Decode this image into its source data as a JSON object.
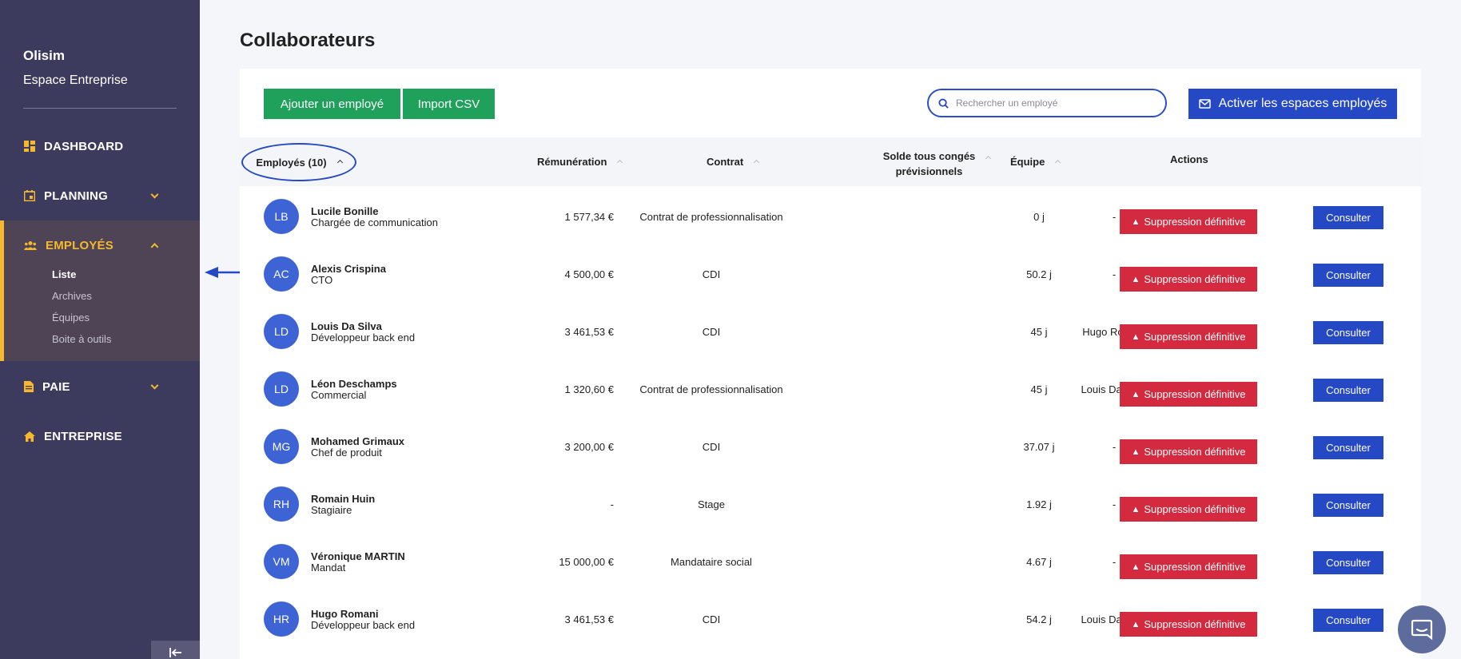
{
  "sidebar": {
    "company": "Olisim",
    "space": "Espace Entreprise",
    "accent_color": "#f5b82e",
    "items": [
      {
        "label": "DASHBOARD",
        "icon": "dashboard-icon"
      },
      {
        "label": "PLANNING",
        "icon": "calendar-icon"
      },
      {
        "label": "EMPLOYÉS",
        "icon": "people-icon"
      },
      {
        "label": "PAIE",
        "icon": "document-icon"
      },
      {
        "label": "ENTREPRISE",
        "icon": "home-icon"
      }
    ],
    "subitems": [
      "Liste",
      "Archives",
      "Équipes",
      "Boite à outils"
    ],
    "collapse_icon": "collapse-left-icon"
  },
  "page": {
    "title": "Collaborateurs"
  },
  "toolbar": {
    "add_label": "Ajouter un employé",
    "import_label": "Import CSV",
    "search_placeholder": "Rechercher un employé",
    "activate_label": "Activer les espaces employés"
  },
  "table": {
    "headers": {
      "employees": "Employés (10)",
      "pay": "Rémunération",
      "contract": "Contrat",
      "balance_line1": "Solde tous congés",
      "balance_line2": "prévisionnels",
      "team": "Équipe",
      "actions": "Actions"
    },
    "delete_label": "Suppression définitive",
    "see_label": "Consulter",
    "rows": [
      {
        "initials": "LB",
        "name": "Lucile Bonille",
        "role": "Chargée de communication",
        "pay": "1 577,34 €",
        "contract": "Contrat de professionnalisation",
        "balance": "0 j",
        "team": "-"
      },
      {
        "initials": "AC",
        "name": "Alexis Crispina",
        "role": "CTO",
        "pay": "4 500,00 €",
        "contract": "CDI",
        "balance": "50.2 j",
        "team": "-"
      },
      {
        "initials": "LD",
        "name": "Louis Da Silva",
        "role": "Développeur back end",
        "pay": "3 461,53 €",
        "contract": "CDI",
        "balance": "45 j",
        "team": "Hugo Romani"
      },
      {
        "initials": "LD",
        "name": "Léon Deschamps",
        "role": "Commercial",
        "pay": "1 320,60 €",
        "contract": "Contrat de professionnalisation",
        "balance": "45 j",
        "team": "Louis Da Silva"
      },
      {
        "initials": "MG",
        "name": "Mohamed Grimaux",
        "role": "Chef de produit",
        "pay": "3 200,00 €",
        "contract": "CDI",
        "balance": "37.07 j",
        "team": "-"
      },
      {
        "initials": "RH",
        "name": "Romain Huin",
        "role": "Stagiaire",
        "pay": "-",
        "contract": "Stage",
        "balance": "1.92 j",
        "team": "-"
      },
      {
        "initials": "VM",
        "name": "Véronique MARTIN",
        "role": "Mandat",
        "pay": "15 000,00 €",
        "contract": "Mandataire social",
        "balance": "4.67 j",
        "team": "-"
      },
      {
        "initials": "HR",
        "name": "Hugo Romani",
        "role": "Développeur back end",
        "pay": "3 461,53 €",
        "contract": "CDI",
        "balance": "54.2 j",
        "team": "Louis Da Silva"
      }
    ]
  }
}
